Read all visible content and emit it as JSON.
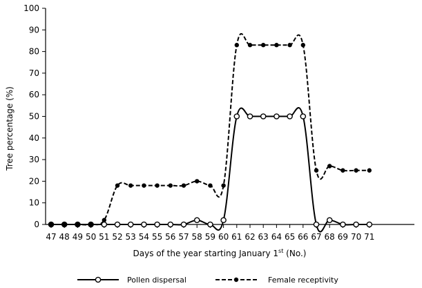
{
  "chart_data": {
    "type": "line",
    "xlabel": "Days of the year starting January 1",
    "xlabel_sup": "st",
    "xlabel_suffix": " (No.)",
    "ylabel": "Tree percentage (%)",
    "ylim": [
      0,
      100
    ],
    "yticks": [
      0,
      10,
      20,
      30,
      40,
      50,
      60,
      70,
      80,
      90,
      100
    ],
    "x": [
      47,
      48,
      49,
      50,
      51,
      52,
      53,
      54,
      55,
      56,
      57,
      58,
      59,
      60,
      61,
      62,
      63,
      64,
      65,
      66,
      67,
      68,
      69,
      70,
      71
    ],
    "series": [
      {
        "name": "Pollen dispersal",
        "style": "solid",
        "marker": "open-circle",
        "values": [
          0,
          0,
          0,
          0,
          0,
          0,
          0,
          0,
          0,
          0,
          0,
          2,
          0,
          2,
          50,
          50,
          50,
          50,
          50,
          50,
          0,
          2,
          0,
          0,
          0
        ]
      },
      {
        "name": "Female receptivity",
        "style": "dashed",
        "marker": "filled-circle",
        "values": [
          0,
          0,
          0,
          0,
          2,
          18,
          18,
          18,
          18,
          18,
          18,
          20,
          18,
          18,
          83,
          83,
          83,
          83,
          83,
          83,
          25,
          27,
          25,
          25,
          25
        ]
      }
    ],
    "grid": false,
    "legend": "bottom",
    "colors": {
      "line": "#000000",
      "background": "#ffffff"
    }
  }
}
